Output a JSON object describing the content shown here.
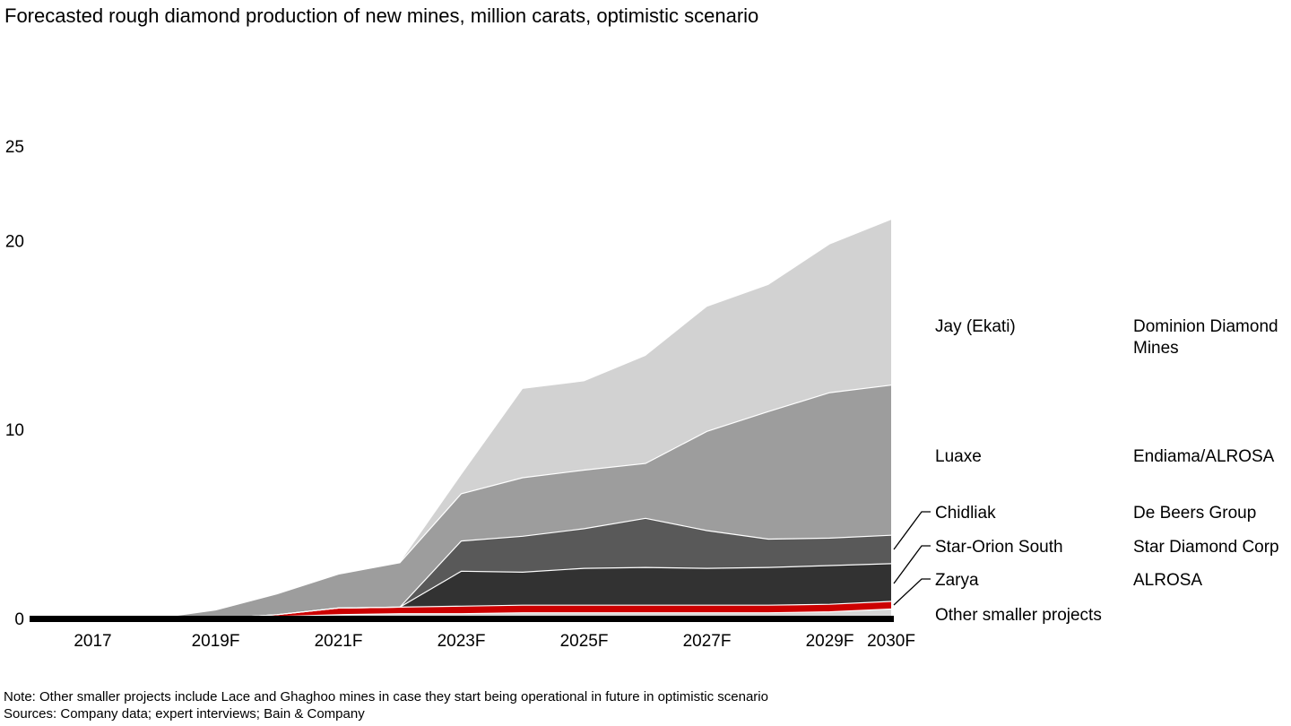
{
  "chart_data": {
    "type": "area",
    "stacked": true,
    "title": "Forecasted rough diamond production of new mines, million carats, optimistic scenario",
    "unit": "million carats",
    "grid": false,
    "legend_position": "right",
    "x": [
      2016,
      2017,
      2018,
      2019,
      2020,
      2021,
      2022,
      2023,
      2024,
      2025,
      2026,
      2027,
      2028,
      2029,
      2030
    ],
    "x_tick_labels": [
      {
        "year": 2017,
        "label": "2017"
      },
      {
        "year": 2019,
        "label": "2019F"
      },
      {
        "year": 2021,
        "label": "2021F"
      },
      {
        "year": 2023,
        "label": "2023F"
      },
      {
        "year": 2025,
        "label": "2025F"
      },
      {
        "year": 2027,
        "label": "2027F"
      },
      {
        "year": 2029,
        "label": "2029F"
      },
      {
        "year": 2030,
        "label": "2030F"
      }
    ],
    "y_ticks": [
      0,
      10,
      20,
      25
    ],
    "ylim": [
      0,
      25
    ],
    "series_order": "top-to-bottom",
    "series": [
      {
        "mine": "Jay (Ekati)",
        "company": "Dominion Diamond Mines",
        "color": "#d2d2d2",
        "values": [
          0,
          0,
          0,
          0,
          0,
          0,
          0,
          1.0,
          4.7,
          4.7,
          5.7,
          6.6,
          6.7,
          7.85,
          8.75
        ]
      },
      {
        "mine": "Luaxe",
        "company": "Endiama/ALROSA",
        "color": "#9d9d9d",
        "values": [
          0,
          0,
          0,
          0.45,
          1.1,
          1.8,
          2.35,
          2.5,
          3.1,
          3.1,
          2.9,
          5.25,
          6.75,
          7.7,
          7.95
        ]
      },
      {
        "mine": "Chidliak",
        "company": "De Beers Group",
        "color": "#595959",
        "values": [
          0,
          0,
          0,
          0,
          0,
          0,
          0,
          1.6,
          1.9,
          2.1,
          2.6,
          2.0,
          1.5,
          1.45,
          1.5
        ]
      },
      {
        "mine": "Star-Orion South",
        "company": "Star Diamond Corp",
        "color": "#323232",
        "values": [
          0,
          0,
          0,
          0,
          0,
          0,
          0,
          1.85,
          1.75,
          1.95,
          2.0,
          1.95,
          2.0,
          2.05,
          2.0
        ]
      },
      {
        "mine": "Zarya",
        "company": "ALROSA",
        "color": "#cc0000",
        "values": [
          0,
          0,
          0,
          0,
          0.1,
          0.35,
          0.35,
          0.4,
          0.4,
          0.4,
          0.4,
          0.4,
          0.4,
          0.4,
          0.4
        ]
      },
      {
        "mine": "Other smaller projects",
        "company": "",
        "color": "#d6d6d6",
        "values": [
          0,
          0,
          0,
          0,
          0.1,
          0.2,
          0.25,
          0.25,
          0.3,
          0.3,
          0.3,
          0.3,
          0.3,
          0.35,
          0.5
        ]
      }
    ]
  },
  "note": "Note: Other smaller projects include Lace and Ghaghoo mines in case they start being operational in future in optimistic scenario",
  "sources": "Sources: Company data; expert interviews; Bain & Company"
}
